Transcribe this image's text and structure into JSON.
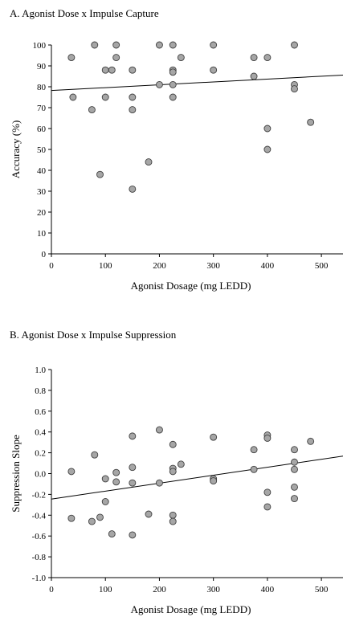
{
  "chart_data": [
    {
      "type": "scatter",
      "title": "A. Agonist Dose x Impulse Capture",
      "xlabel": "Agonist Dosage (mg LEDD)",
      "ylabel": "Accuracy (%)",
      "xlim": [
        0,
        540
      ],
      "ylim": [
        0,
        100
      ],
      "xticks": [
        0,
        100,
        200,
        300,
        400,
        500
      ],
      "yticks": [
        0,
        10,
        20,
        30,
        40,
        50,
        60,
        70,
        80,
        90,
        100
      ],
      "grid": false,
      "points": [
        [
          37,
          94
        ],
        [
          40,
          75
        ],
        [
          75,
          69
        ],
        [
          80,
          100
        ],
        [
          90,
          38
        ],
        [
          100,
          88
        ],
        [
          100,
          75
        ],
        [
          112,
          88
        ],
        [
          120,
          100
        ],
        [
          120,
          94
        ],
        [
          150,
          88
        ],
        [
          150,
          75
        ],
        [
          150,
          69
        ],
        [
          150,
          31
        ],
        [
          180,
          44
        ],
        [
          200,
          100
        ],
        [
          200,
          81
        ],
        [
          225,
          100
        ],
        [
          225,
          88
        ],
        [
          225,
          87
        ],
        [
          225,
          81
        ],
        [
          225,
          75
        ],
        [
          240,
          94
        ],
        [
          300,
          100
        ],
        [
          300,
          88
        ],
        [
          375,
          94
        ],
        [
          375,
          85
        ],
        [
          400,
          94
        ],
        [
          400,
          60
        ],
        [
          400,
          50
        ],
        [
          450,
          100
        ],
        [
          450,
          81
        ],
        [
          450,
          79
        ],
        [
          480,
          63
        ]
      ],
      "fit_line": {
        "x": [
          0,
          540
        ],
        "y": [
          78.2,
          85.6
        ]
      },
      "colors": {
        "marker_fill": "#a6a6a6",
        "marker_stroke": "#404040",
        "line": "#000000"
      }
    },
    {
      "type": "scatter",
      "title": "B. Agonist Dose x Impulse Suppression",
      "xlabel": "Agonist Dosage (mg LEDD)",
      "ylabel": "Suppression Slope",
      "xlim": [
        0,
        540
      ],
      "ylim": [
        -1.0,
        1.0
      ],
      "xticks": [
        0,
        100,
        200,
        300,
        400,
        500
      ],
      "yticks": [
        -1.0,
        -0.8,
        -0.6,
        -0.4,
        -0.2,
        0.0,
        0.2,
        0.4,
        0.6,
        0.8,
        1.0
      ],
      "ytick_labels": [
        "-1.0",
        "-0.8",
        "-0.6",
        "-0.4",
        "-0.2",
        "0.0",
        "0.2",
        "0.4",
        "0.6",
        "0.8",
        "1.0"
      ],
      "grid": false,
      "points": [
        [
          37,
          0.02
        ],
        [
          37,
          -0.43
        ],
        [
          75,
          -0.46
        ],
        [
          80,
          0.18
        ],
        [
          90,
          -0.42
        ],
        [
          100,
          -0.05
        ],
        [
          100,
          -0.27
        ],
        [
          112,
          -0.58
        ],
        [
          120,
          0.01
        ],
        [
          120,
          -0.08
        ],
        [
          150,
          0.36
        ],
        [
          150,
          0.06
        ],
        [
          150,
          -0.09
        ],
        [
          150,
          -0.59
        ],
        [
          180,
          -0.39
        ],
        [
          200,
          0.42
        ],
        [
          200,
          -0.09
        ],
        [
          225,
          0.28
        ],
        [
          225,
          0.05
        ],
        [
          225,
          0.02
        ],
        [
          225,
          -0.4
        ],
        [
          225,
          -0.46
        ],
        [
          240,
          0.09
        ],
        [
          300,
          0.35
        ],
        [
          300,
          -0.05
        ],
        [
          300,
          -0.07
        ],
        [
          375,
          0.23
        ],
        [
          375,
          0.04
        ],
        [
          400,
          0.37
        ],
        [
          400,
          0.34
        ],
        [
          400,
          -0.18
        ],
        [
          400,
          -0.32
        ],
        [
          450,
          0.23
        ],
        [
          450,
          0.11
        ],
        [
          450,
          0.04
        ],
        [
          450,
          -0.13
        ],
        [
          450,
          -0.24
        ],
        [
          480,
          0.31
        ]
      ],
      "fit_line": {
        "x": [
          0,
          540
        ],
        "y": [
          -0.245,
          0.168
        ]
      },
      "colors": {
        "marker_fill": "#a6a6a6",
        "marker_stroke": "#404040",
        "line": "#000000"
      }
    }
  ]
}
